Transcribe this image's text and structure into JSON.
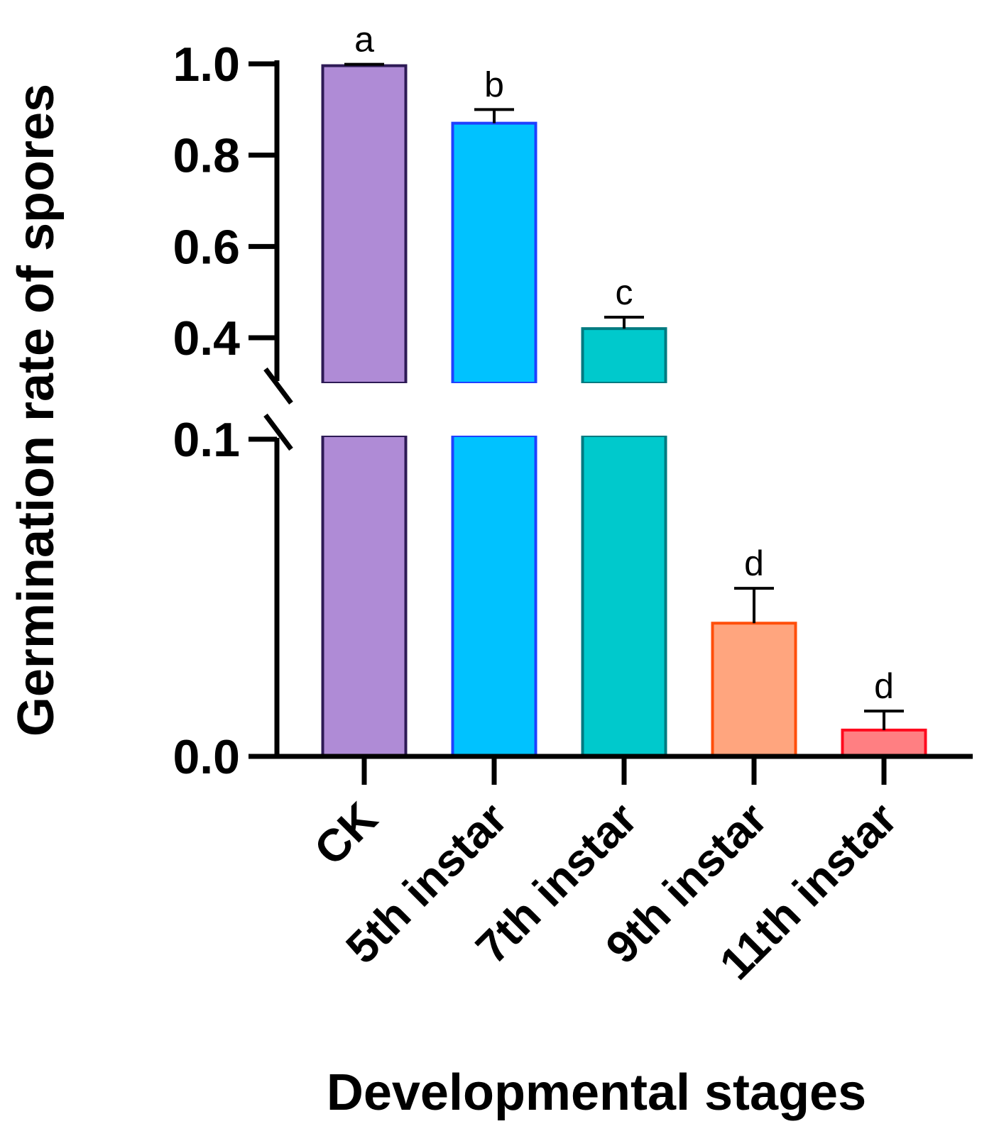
{
  "chart_data": {
    "type": "bar",
    "title": "",
    "xlabel": "Developmental stages",
    "ylabel": "Germination rate of spores",
    "categories": [
      "CK",
      "5th instar",
      "7th instar",
      "9th instar",
      "11th instar"
    ],
    "values": [
      0.996,
      0.87,
      0.42,
      0.042,
      0.0083
    ],
    "error_bars": [
      0.003,
      0.03,
      0.025,
      0.011,
      0.006
    ],
    "significance_letters": [
      "a",
      "b",
      "c",
      "d",
      "d"
    ],
    "colors": {
      "fill": [
        "#AF8BD6",
        "#00C2FF",
        "#00C9CC",
        "#FFA57E",
        "#FF7F82"
      ],
      "stroke": [
        "#2D1A55",
        "#1E40FF",
        "#007A80",
        "#FF4E0A",
        "#FF0A1E"
      ]
    },
    "y_axis": {
      "broken": true,
      "lower_segment": {
        "range": [
          0.0,
          0.1
        ],
        "ticks": [
          "0.0",
          "0.1"
        ]
      },
      "upper_segment": {
        "range": [
          0.35,
          1.0
        ],
        "ticks": [
          "0.4",
          "0.6",
          "0.8",
          "1.0"
        ]
      }
    },
    "grid": false,
    "legend": "none"
  }
}
